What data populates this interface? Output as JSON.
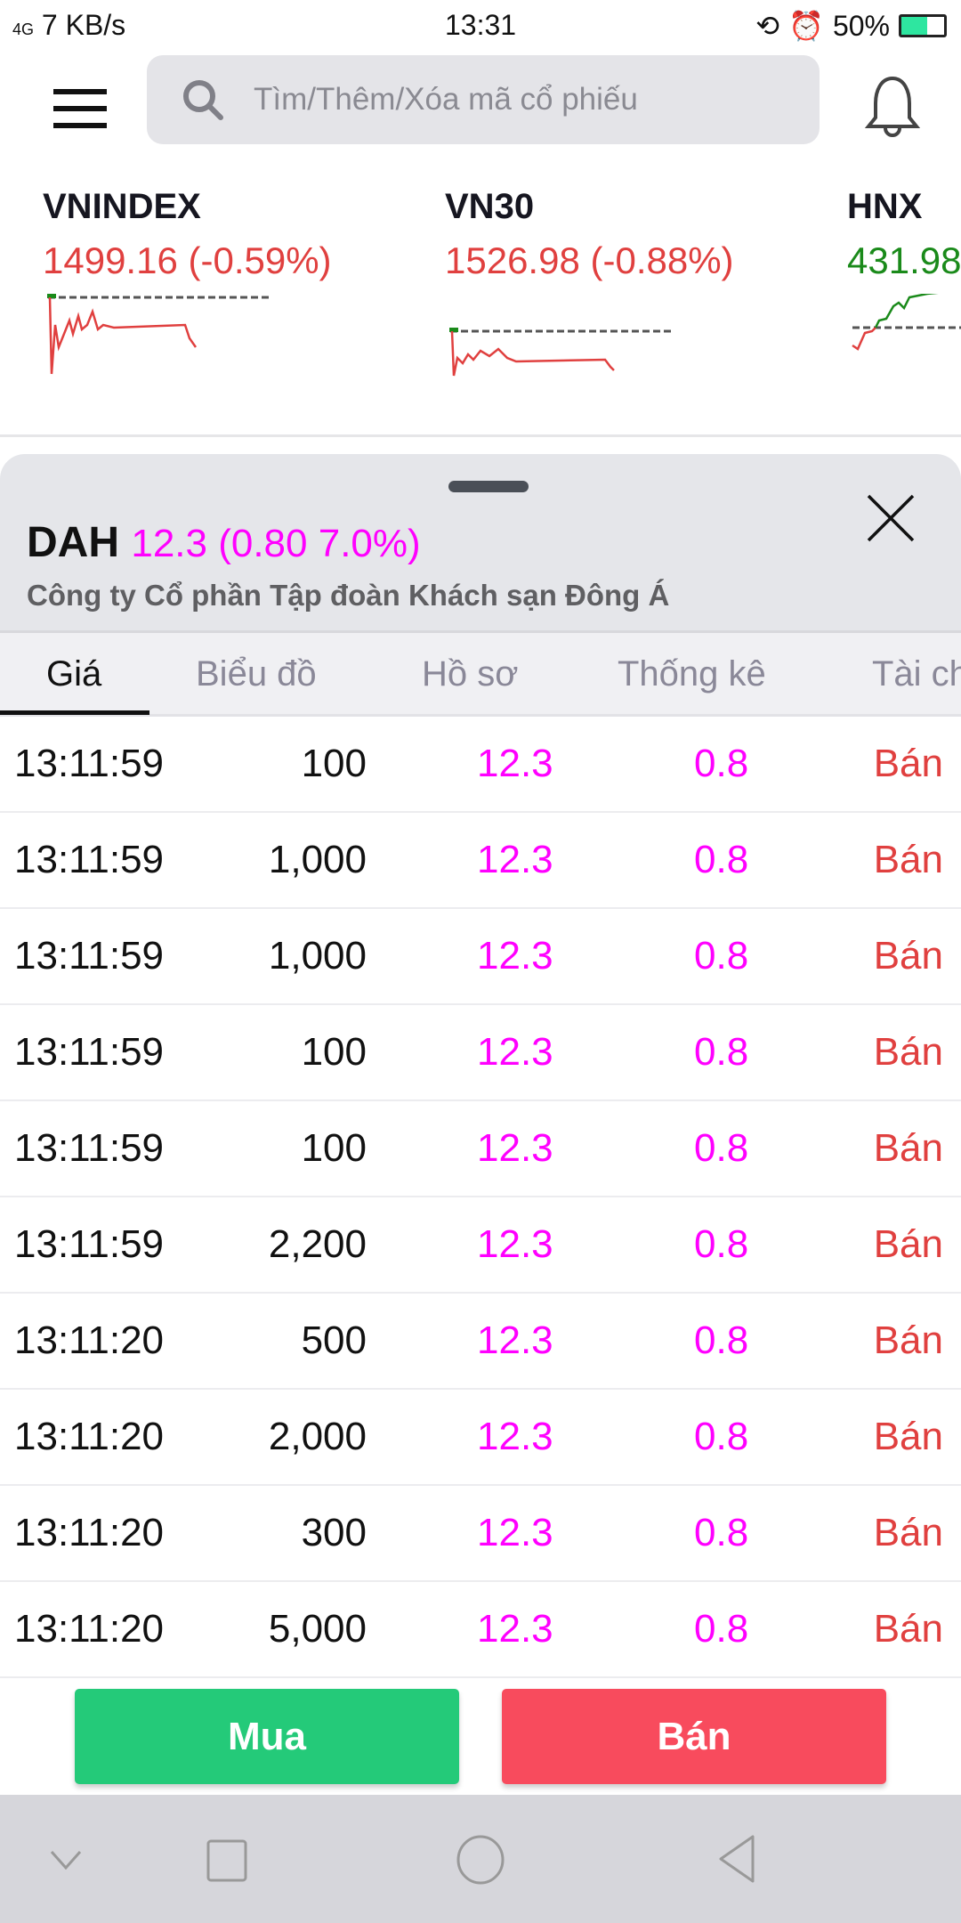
{
  "status_bar": {
    "network": "4G",
    "speed": "7 KB/s",
    "time": "13:31",
    "battery": "50%"
  },
  "header": {
    "search_placeholder": "Tìm/Thêm/Xóa mã cổ phiếu",
    "icons": [
      "menu-icon",
      "search-icon",
      "bell-icon"
    ]
  },
  "indices": [
    {
      "name": "VNINDEX",
      "value": "1499.16 (-0.59%)",
      "color": "#e0403f"
    },
    {
      "name": "VN30",
      "value": "1526.98 (-0.88%)",
      "color": "#e0403f"
    },
    {
      "name": "HNX",
      "value": "431.98",
      "color": "#1a8a1a"
    }
  ],
  "stock": {
    "symbol": "DAH",
    "price_change": "12.3 (0.80 7.0%)",
    "company": "Công ty Cổ phần Tập đoàn Khách sạn Đông Á"
  },
  "tabs": [
    {
      "label": "Giá",
      "active": true
    },
    {
      "label": "Biểu đồ"
    },
    {
      "label": "Hồ sơ"
    },
    {
      "label": "Thống kê"
    },
    {
      "label": "Tài ch"
    }
  ],
  "trades": [
    {
      "time": "13:11:59",
      "volume": "100",
      "price": "12.3",
      "change": "0.8",
      "side": "Bán"
    },
    {
      "time": "13:11:59",
      "volume": "1,000",
      "price": "12.3",
      "change": "0.8",
      "side": "Bán"
    },
    {
      "time": "13:11:59",
      "volume": "1,000",
      "price": "12.3",
      "change": "0.8",
      "side": "Bán"
    },
    {
      "time": "13:11:59",
      "volume": "100",
      "price": "12.3",
      "change": "0.8",
      "side": "Bán"
    },
    {
      "time": "13:11:59",
      "volume": "100",
      "price": "12.3",
      "change": "0.8",
      "side": "Bán"
    },
    {
      "time": "13:11:59",
      "volume": "2,200",
      "price": "12.3",
      "change": "0.8",
      "side": "Bán"
    },
    {
      "time": "13:11:20",
      "volume": "500",
      "price": "12.3",
      "change": "0.8",
      "side": "Bán"
    },
    {
      "time": "13:11:20",
      "volume": "2,000",
      "price": "12.3",
      "change": "0.8",
      "side": "Bán"
    },
    {
      "time": "13:11:20",
      "volume": "300",
      "price": "12.3",
      "change": "0.8",
      "side": "Bán"
    },
    {
      "time": "13:11:20",
      "volume": "5,000",
      "price": "12.3",
      "change": "0.8",
      "side": "Bán"
    }
  ],
  "actions": {
    "buy": "Mua",
    "sell": "Bán",
    "buy_color": "#24ca79",
    "sell_color": "#f84b5d"
  }
}
